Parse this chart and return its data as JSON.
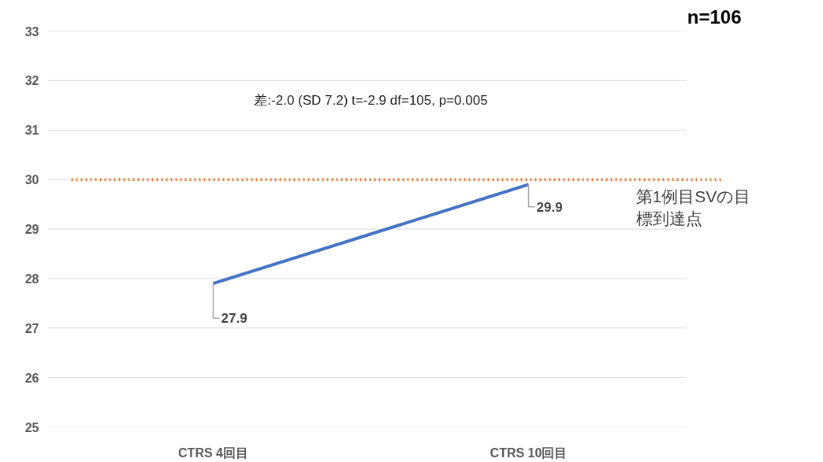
{
  "chart_data": {
    "type": "line",
    "categories": [
      "CTRS 4回目",
      "CTRS 10回目"
    ],
    "series": [
      {
        "color": "#4472c4",
        "values": [
          27.9,
          29.9
        ]
      }
    ],
    "ylim": [
      25,
      33
    ],
    "yticks": [
      25,
      26,
      27,
      28,
      29,
      30,
      31,
      32,
      33
    ],
    "grid": "y",
    "marker": "none",
    "line_style": "solid",
    "data_labels": true,
    "ref_lines": [
      {
        "axis": "y",
        "value": 30,
        "label": "第1例目SVの目標到達点",
        "color": "#ed7d31",
        "line_style": "dotted"
      }
    ],
    "annotations": [
      "差:-2.0 (SD 7.2) t=-2.9 df=105, p=0.005",
      "n=106"
    ]
  }
}
